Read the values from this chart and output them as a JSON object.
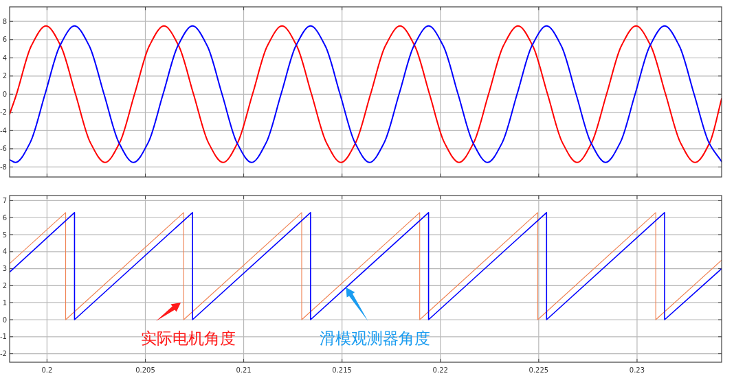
{
  "chart_data": [
    {
      "type": "line",
      "xlim": [
        0.1981,
        0.2343
      ],
      "xticks": [
        0.2,
        0.205,
        0.21,
        0.215,
        0.22,
        0.225,
        0.23
      ],
      "ylim": [
        -9.1,
        9.6
      ],
      "yticks": [
        -8,
        -6,
        -4,
        -2,
        0,
        2,
        4,
        6,
        8
      ],
      "grid": true,
      "tick_labels": "y",
      "series": [
        {
          "color": "#ff0000",
          "x": [
            0.1981,
            0.19845,
            0.1992,
            0.19995,
            0.2007,
            0.20145,
            0.2022,
            0.20295,
            0.2037,
            0.20445,
            0.2052,
            0.20595,
            0.2067,
            0.20745,
            0.2082,
            0.20895,
            0.2097,
            0.21045,
            0.2112,
            0.21195,
            0.2127,
            0.21345,
            0.2142,
            0.21495,
            0.2157,
            0.21645,
            0.2172,
            0.21795,
            0.2187,
            0.21945,
            0.2202,
            0.22095,
            0.2217,
            0.22245,
            0.2232,
            0.22395,
            0.2247,
            0.22545,
            0.2262,
            0.22695,
            0.2277,
            0.22845,
            0.2292,
            0.22995,
            0.2307,
            0.23145,
            0.2322,
            0.23295,
            0.2337,
            0.2343
          ],
          "values": [
            -2.2,
            0,
            5.3,
            7.5,
            5.3,
            0,
            -5.3,
            -7.5,
            -5.3,
            0,
            5.3,
            7.5,
            5.3,
            0,
            -5.3,
            -7.5,
            -5.3,
            0,
            5.3,
            7.5,
            5.3,
            0,
            -5.3,
            -7.5,
            -5.3,
            0,
            5.3,
            7.5,
            5.3,
            0,
            -5.3,
            -7.5,
            -5.3,
            0,
            5.3,
            7.5,
            5.3,
            0,
            -5.3,
            -7.5,
            -5.3,
            0,
            5.3,
            7.5,
            5.3,
            0,
            -5.3,
            -7.5,
            -5.3,
            -0.5
          ]
        },
        {
          "color": "#0000ff",
          "x": [
            0.1981,
            0.1984,
            0.19915,
            0.1999,
            0.20065,
            0.2014,
            0.20215,
            0.2029,
            0.20365,
            0.2044,
            0.20515,
            0.2059,
            0.20665,
            0.2074,
            0.20815,
            0.2089,
            0.20965,
            0.2104,
            0.21115,
            0.2119,
            0.21265,
            0.2134,
            0.21415,
            0.2149,
            0.21565,
            0.2164,
            0.21715,
            0.2179,
            0.21865,
            0.2194,
            0.22015,
            0.2209,
            0.22165,
            0.2224,
            0.22315,
            0.2239,
            0.22465,
            0.2254,
            0.22615,
            0.2269,
            0.22765,
            0.2284,
            0.22915,
            0.2299,
            0.23065,
            0.2314,
            0.23215,
            0.2329,
            0.23365,
            0.2343
          ],
          "values": [
            -7.2,
            -7.5,
            -5.3,
            0,
            5.3,
            7.5,
            5.3,
            0,
            -5.3,
            -7.5,
            -5.3,
            0,
            5.3,
            7.5,
            5.3,
            0,
            -5.3,
            -7.5,
            -5.3,
            0,
            5.3,
            7.5,
            5.3,
            0,
            -5.3,
            -7.5,
            -5.3,
            0,
            5.3,
            7.5,
            5.3,
            0,
            -5.3,
            -7.5,
            -5.3,
            0,
            5.3,
            7.5,
            5.3,
            0,
            -5.3,
            -7.5,
            -5.3,
            0,
            5.3,
            7.5,
            5.3,
            0,
            -5.3,
            -7.4
          ]
        }
      ]
    },
    {
      "type": "line",
      "xlim": [
        0.1981,
        0.2343
      ],
      "xticks": [
        0.2,
        0.205,
        0.21,
        0.215,
        0.22,
        0.225,
        0.23
      ],
      "ylim": [
        -2.5,
        7.3
      ],
      "yticks": [
        -2,
        -1,
        0,
        1,
        2,
        3,
        4,
        5,
        6,
        7
      ],
      "grid": true,
      "series": [
        {
          "color": "#f08050",
          "x": [
            0.1981,
            0.20095,
            0.20095,
            0.20695,
            0.20695,
            0.21295,
            0.21295,
            0.21895,
            0.21895,
            0.22495,
            0.22495,
            0.23095,
            0.23095,
            0.2343
          ],
          "values": [
            3.3,
            6.3,
            0,
            6.3,
            0,
            6.3,
            0,
            6.3,
            0,
            6.3,
            0,
            6.3,
            0,
            3.5
          ]
        },
        {
          "color": "#0000ff",
          "x": [
            0.1981,
            0.2014,
            0.2014,
            0.2074,
            0.2074,
            0.2134,
            0.2134,
            0.2194,
            0.2194,
            0.2254,
            0.2254,
            0.2314,
            0.2314,
            0.2343
          ],
          "values": [
            2.8,
            6.3,
            0,
            6.3,
            0,
            6.3,
            0,
            6.3,
            0,
            6.3,
            0,
            6.3,
            0,
            3.0
          ]
        }
      ],
      "annotations": [
        {
          "text": "实际电机角度",
          "x": 0.2068,
          "y": 1.0
        },
        {
          "text": "滑模观测器角度",
          "x": 0.2152,
          "y": 1.9
        }
      ]
    }
  ]
}
